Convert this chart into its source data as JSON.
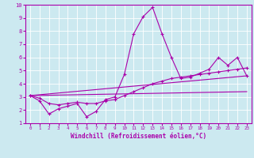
{
  "title": "",
  "xlabel": "Windchill (Refroidissement éolien,°C)",
  "ylabel": "",
  "xlim": [
    -0.5,
    23.5
  ],
  "ylim": [
    1,
    10
  ],
  "xticks": [
    0,
    1,
    2,
    3,
    4,
    5,
    6,
    7,
    8,
    9,
    10,
    11,
    12,
    13,
    14,
    15,
    16,
    17,
    18,
    19,
    20,
    21,
    22,
    23
  ],
  "yticks": [
    1,
    2,
    3,
    4,
    5,
    6,
    7,
    8,
    9,
    10
  ],
  "bg_color": "#cce9f0",
  "line_color": "#aa00aa",
  "grid_color": "#ffffff",
  "line1_x": [
    0,
    1,
    2,
    3,
    4,
    5,
    6,
    7,
    8,
    9,
    10,
    11,
    12,
    13,
    14,
    15,
    16,
    17,
    18,
    19,
    20,
    21,
    22,
    23
  ],
  "line1_y": [
    3.1,
    2.7,
    1.7,
    2.1,
    2.3,
    2.5,
    1.5,
    1.9,
    2.8,
    3.0,
    4.7,
    7.8,
    9.1,
    9.8,
    7.8,
    6.0,
    4.4,
    4.5,
    4.8,
    5.1,
    6.0,
    5.4,
    6.0,
    4.6
  ],
  "line2_x": [
    0,
    1,
    2,
    3,
    4,
    5,
    6,
    7,
    8,
    9,
    10,
    11,
    12,
    13,
    14,
    15,
    16,
    17,
    18,
    19,
    20,
    21,
    22,
    23
  ],
  "line2_y": [
    3.1,
    2.9,
    2.5,
    2.4,
    2.5,
    2.6,
    2.5,
    2.5,
    2.7,
    2.8,
    3.1,
    3.4,
    3.7,
    4.0,
    4.2,
    4.4,
    4.5,
    4.6,
    4.7,
    4.8,
    4.9,
    5.0,
    5.1,
    5.2
  ],
  "line3_x": [
    0,
    23
  ],
  "line3_y": [
    3.1,
    4.6
  ],
  "line4_x": [
    0,
    23
  ],
  "line4_y": [
    3.1,
    3.4
  ]
}
